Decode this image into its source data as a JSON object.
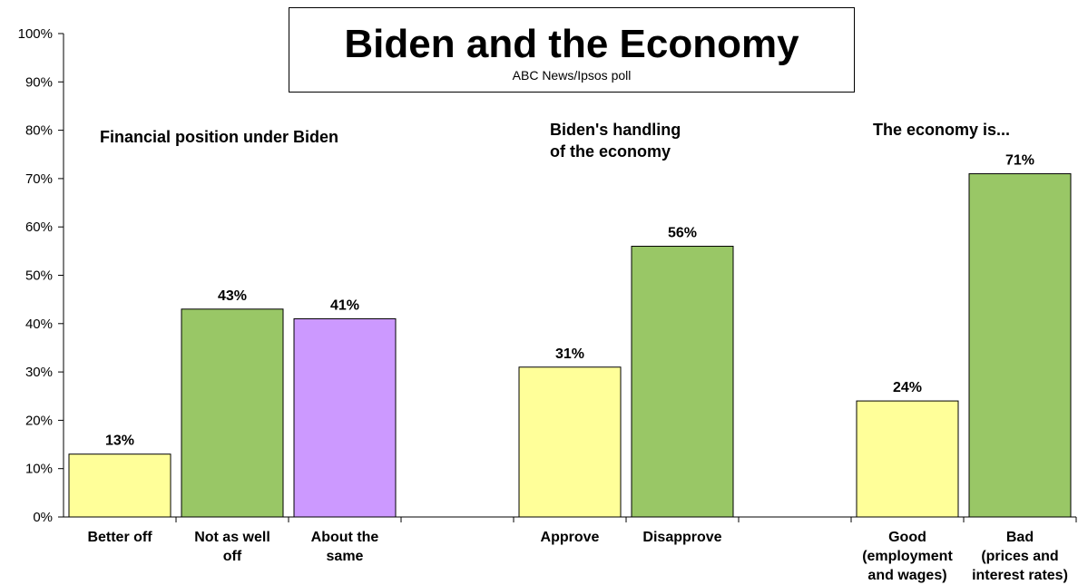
{
  "chart_data": {
    "type": "bar",
    "title": "Biden and the Economy",
    "subtitle": "ABC News/Ipsos  poll",
    "ylim": [
      0,
      100
    ],
    "yticks": [
      "0%",
      "10%",
      "20%",
      "30%",
      "40%",
      "50%",
      "60%",
      "70%",
      "80%",
      "90%",
      "100%"
    ],
    "groups": [
      {
        "label": [
          "Financial position under Biden"
        ],
        "bars": [
          {
            "category": [
              "Better off"
            ],
            "value": 13,
            "label": "13%",
            "color": "#FFFF99"
          },
          {
            "category": [
              "Not as well",
              "off"
            ],
            "value": 43,
            "label": "43%",
            "color": "#99C766"
          },
          {
            "category": [
              "About the",
              "same"
            ],
            "value": 41,
            "label": "41%",
            "color": "#CC99FF"
          }
        ]
      },
      {
        "label": [
          "Biden's handling",
          "of the economy"
        ],
        "bars": [
          {
            "category": [
              "Approve"
            ],
            "value": 31,
            "label": "31%",
            "color": "#FFFF99"
          },
          {
            "category": [
              "Disapprove"
            ],
            "value": 56,
            "label": "56%",
            "color": "#99C766"
          }
        ]
      },
      {
        "label": [
          "The economy is..."
        ],
        "bars": [
          {
            "category": [
              "Good",
              "(employment",
              "and wages)"
            ],
            "value": 24,
            "label": "24%",
            "color": "#FFFF99"
          },
          {
            "category": [
              "Bad",
              "(prices and",
              "interest rates)"
            ],
            "value": 71,
            "label": "71%",
            "color": "#99C766"
          }
        ]
      }
    ],
    "grid": false,
    "legend": "none"
  }
}
